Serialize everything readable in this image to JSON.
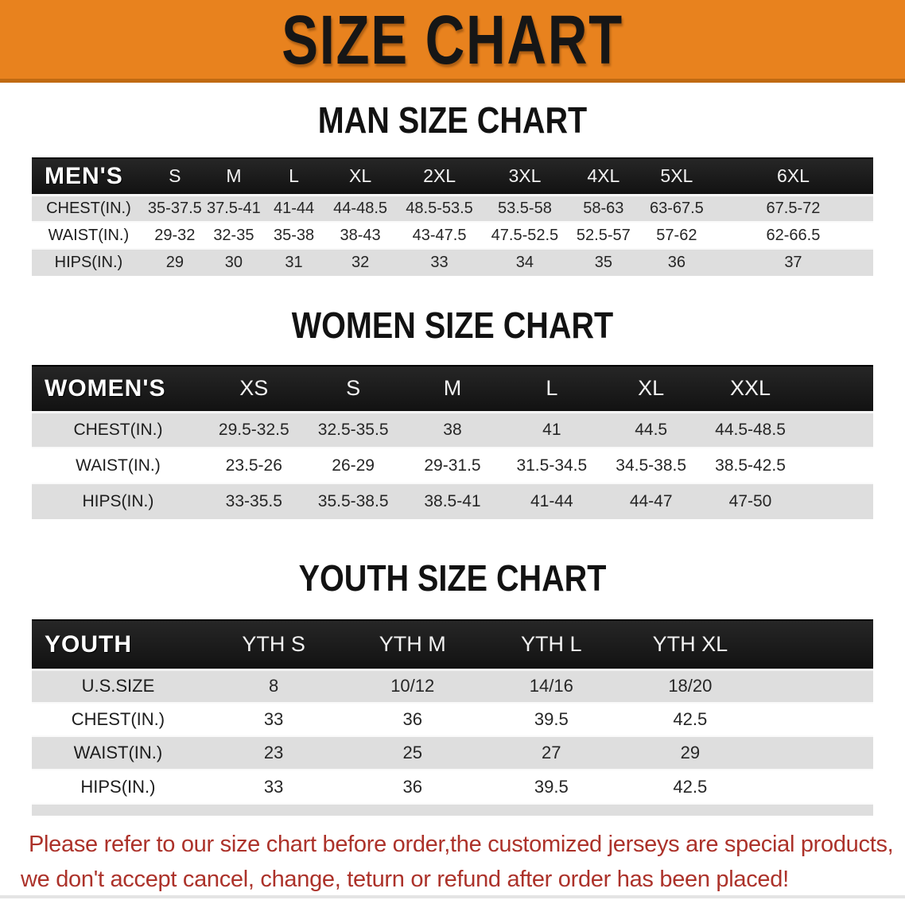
{
  "banner": {
    "title": "SIZE CHART",
    "bg_color": "#E8821E",
    "edge_color": "#C06A12"
  },
  "sections": [
    {
      "id": "men",
      "heading": "MAN SIZE CHART",
      "table": {
        "corner_label": "MEN'S",
        "columns": [
          "S",
          "M",
          "L",
          "XL",
          "2XL",
          "3XL",
          "4XL",
          "5XL",
          "6XL"
        ],
        "rows": [
          {
            "label": "CHEST(IN.)",
            "values": [
              "35-37.5",
              "37.5-41",
              "41-44",
              "44-48.5",
              "48.5-53.5",
              "53.5-58",
              "58-63",
              "63-67.5",
              "67.5-72"
            ]
          },
          {
            "label": "WAIST(IN.)",
            "values": [
              "29-32",
              "32-35",
              "35-38",
              "38-43",
              "43-47.5",
              "47.5-52.5",
              "52.5-57",
              "57-62",
              "62-66.5"
            ]
          },
          {
            "label": "HIPS(IN.)",
            "values": [
              "29",
              "30",
              "31",
              "32",
              "33",
              "34",
              "35",
              "36",
              "37"
            ]
          }
        ]
      }
    },
    {
      "id": "women",
      "heading": "WOMEN SIZE CHART",
      "table": {
        "corner_label": "WOMEN'S",
        "columns": [
          "XS",
          "S",
          "M",
          "L",
          "XL",
          "XXL"
        ],
        "rows": [
          {
            "label": "CHEST(IN.)",
            "values": [
              "29.5-32.5",
              "32.5-35.5",
              "38",
              "41",
              "44.5",
              "44.5-48.5"
            ]
          },
          {
            "label": "WAIST(IN.)",
            "values": [
              "23.5-26",
              "26-29",
              "29-31.5",
              "31.5-34.5",
              "34.5-38.5",
              "38.5-42.5"
            ]
          },
          {
            "label": "HIPS(IN.)",
            "values": [
              "33-35.5",
              "35.5-38.5",
              "38.5-41",
              "41-44",
              "44-47",
              "47-50"
            ]
          }
        ]
      }
    },
    {
      "id": "youth",
      "heading": "YOUTH SIZE CHART",
      "table": {
        "corner_label": "YOUTH",
        "columns": [
          "YTH S",
          "YTH M",
          "YTH L",
          "YTH XL"
        ],
        "rows": [
          {
            "label": "U.S.SIZE",
            "values": [
              "8",
              "10/12",
              "14/16",
              "18/20"
            ]
          },
          {
            "label": "CHEST(IN.)",
            "values": [
              "33",
              "36",
              "39.5",
              "42.5"
            ]
          },
          {
            "label": "WAIST(IN.)",
            "values": [
              "23",
              "25",
              "27",
              "29"
            ]
          },
          {
            "label": "HIPS(IN.)",
            "values": [
              "33",
              "36",
              "39.5",
              "42.5"
            ]
          }
        ]
      }
    }
  ],
  "footer": {
    "line1": "Please refer to our size chart before order,the customized jerseys are special products,",
    "line2": "we don't accept cancel, change, teturn or refund after order has been placed!",
    "text_color": "#AC322A"
  }
}
